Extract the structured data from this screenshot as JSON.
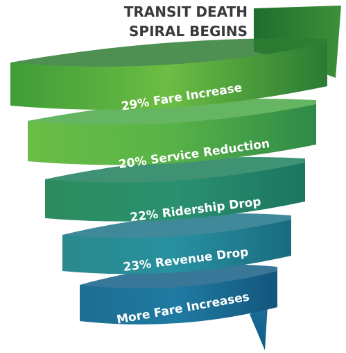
{
  "title": [
    "TRANSIT DEATH",
    "SPIRAL BEGINS"
  ],
  "bands": [
    {
      "label": "29% Fare Increase"
    },
    {
      "label": "20% Service Reduction"
    },
    {
      "label": "22% Ridership Drop"
    },
    {
      "label": "23% Revenue Drop"
    },
    {
      "label": "More Fare Increases"
    }
  ]
}
